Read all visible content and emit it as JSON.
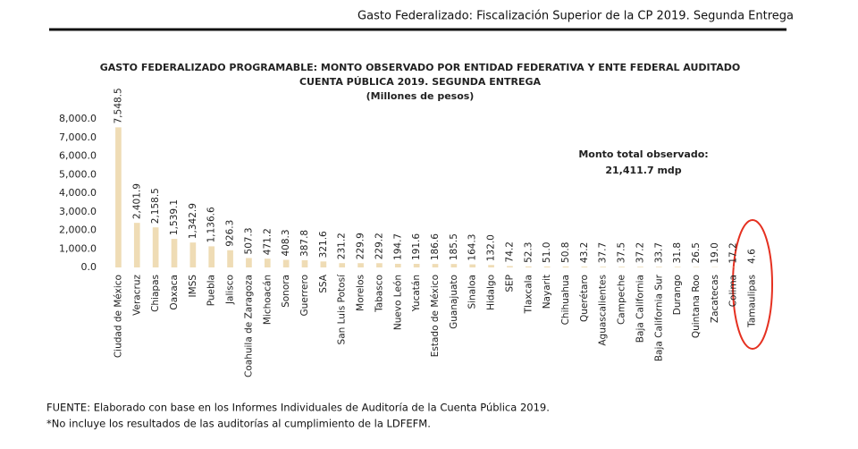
{
  "header": {
    "title": "Gasto Federalizado: Fiscalización Superior de la CP 2019. Segunda Entrega"
  },
  "chart_data": {
    "type": "bar",
    "title": "GASTO FEDERALIZADO PROGRAMABLE: MONTO OBSERVADO POR ENTIDAD FEDERATIVA Y ENTE FEDERAL AUDITADO",
    "subtitle": "CUENTA PÚBLICA 2019. SEGUNDA ENTREGA",
    "y_label": "(Millones de pesos)",
    "annotations": [
      "Monto total observado:",
      "21,411.7 mdp"
    ],
    "categories": [
      "Ciudad de México",
      "Veracruz",
      "Chiapas",
      "Oaxaca",
      "IMSS",
      "Puebla",
      "Jalisco",
      "Coahuila de Zaragoza",
      "Michoacán",
      "Sonora",
      "Guerrero",
      "SSA",
      "San Luis Potosí",
      "Morelos",
      "Tabasco",
      "Nuevo León",
      "Yucatán",
      "Estado de México",
      "Guanajuato",
      "Sinaloa",
      "Hidalgo",
      "SEP",
      "Tlaxcala",
      "Nayarit",
      "Chihuahua",
      "Querétaro",
      "Aguascalientes",
      "Campeche",
      "Baja California",
      "Baja California Sur",
      "Durango",
      "Quintana Roo",
      "Zacatecas",
      "Colima",
      "Tamaulipas"
    ],
    "values": [
      7548.5,
      2401.9,
      2158.5,
      1539.1,
      1342.9,
      1136.6,
      926.3,
      507.3,
      471.2,
      408.3,
      387.8,
      321.6,
      231.2,
      229.9,
      229.2,
      194.7,
      191.6,
      186.6,
      185.5,
      164.3,
      132.0,
      74.2,
      52.3,
      51.0,
      50.8,
      43.2,
      37.7,
      37.5,
      37.2,
      33.7,
      31.8,
      26.5,
      19.0,
      17.2,
      4.6
    ],
    "value_labels": [
      "7,548.5",
      "2,401.9",
      "2,158.5",
      "1,539.1",
      "1,342.9",
      "1,136.6",
      "926.3",
      "507.3",
      "471.2",
      "408.3",
      "387.8",
      "321.6",
      "231.2",
      "229.9",
      "229.2",
      "194.7",
      "191.6",
      "186.6",
      "185.5",
      "164.3",
      "132.0",
      "74.2",
      "52.3",
      "51.0",
      "50.8",
      "43.2",
      "37.7",
      "37.5",
      "37.2",
      "33.7",
      "31.8",
      "26.5",
      "19.0",
      "17.2",
      "4.6"
    ],
    "color": "#efdcb5",
    "ylim": [
      0,
      8000
    ],
    "yticks": [
      {
        "value": 0,
        "label": "0.0"
      },
      {
        "value": 1000,
        "label": "1,000.0"
      },
      {
        "value": 2000,
        "label": "2,000.0"
      },
      {
        "value": 3000,
        "label": "3,000.0"
      },
      {
        "value": 4000,
        "label": "4,000.0"
      },
      {
        "value": 5000,
        "label": "5,000.0"
      },
      {
        "value": 6000,
        "label": "6,000.0"
      },
      {
        "value": 7000,
        "label": "7,000.0"
      },
      {
        "value": 8000,
        "label": "8,000.0"
      }
    ],
    "grid": false
  },
  "footer": {
    "source": "FUENTE: Elaborado con base en los Informes Individuales de Auditoría de la Cuenta Pública 2019.",
    "note": "*No incluye los resultados de las auditorías al cumplimiento de la LDFEFM."
  }
}
